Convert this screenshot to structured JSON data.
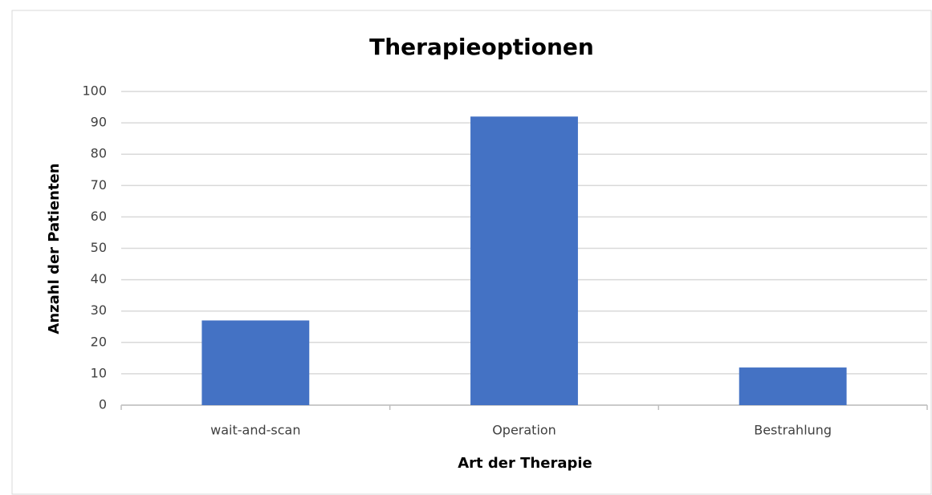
{
  "chart_data": {
    "type": "bar",
    "title": "Therapieoptionen",
    "x_label": "Art der Therapie",
    "y_label": "Anzahl der Patienten",
    "categories": [
      "wait-and-scan",
      "Operation",
      "Bestrahlung"
    ],
    "values": [
      27,
      92,
      12
    ],
    "color": "#4472c4",
    "ylim": [
      0,
      100
    ],
    "yticks": [
      0,
      10,
      20,
      30,
      40,
      50,
      60,
      70,
      80,
      90,
      100
    ],
    "grid": true
  }
}
